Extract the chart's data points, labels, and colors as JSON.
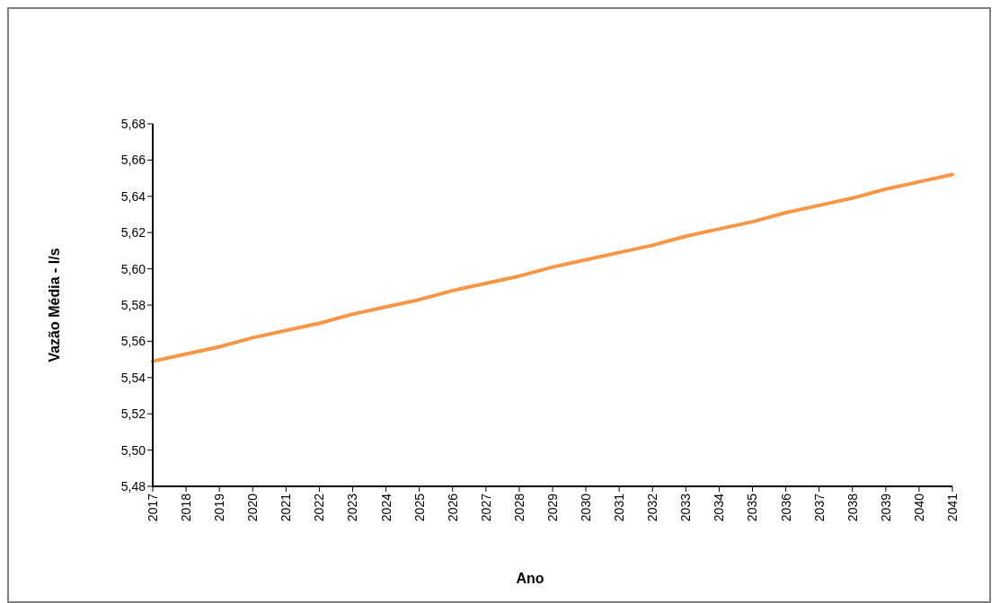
{
  "chart_data": {
    "type": "line",
    "xlabel": "Ano",
    "ylabel": "Vazão Média - l/s",
    "categories": [
      "2017",
      "2018",
      "2019",
      "2020",
      "2021",
      "2022",
      "2023",
      "2024",
      "2025",
      "2026",
      "2027",
      "2028",
      "2029",
      "2030",
      "2031",
      "2032",
      "2033",
      "2034",
      "2035",
      "2036",
      "2037",
      "2038",
      "2039",
      "2040",
      "2041"
    ],
    "series": [
      {
        "color": "#f79646",
        "values": [
          5.549,
          5.553,
          5.557,
          5.562,
          5.566,
          5.57,
          5.575,
          5.579,
          5.583,
          5.588,
          5.592,
          5.596,
          5.601,
          5.605,
          5.609,
          5.613,
          5.618,
          5.622,
          5.626,
          5.631,
          5.635,
          5.639,
          5.644,
          5.648,
          5.652
        ]
      }
    ],
    "ylim": [
      5.48,
      5.68
    ],
    "yticks": [
      {
        "value": 5.48,
        "label": "5,48"
      },
      {
        "value": 5.5,
        "label": "5,50"
      },
      {
        "value": 5.52,
        "label": "5,52"
      },
      {
        "value": 5.54,
        "label": "5,54"
      },
      {
        "value": 5.56,
        "label": "5,56"
      },
      {
        "value": 5.58,
        "label": "5,58"
      },
      {
        "value": 5.6,
        "label": "5,60"
      },
      {
        "value": 5.62,
        "label": "5,62"
      },
      {
        "value": 5.64,
        "label": "5,64"
      },
      {
        "value": 5.66,
        "label": "5,66"
      },
      {
        "value": 5.68,
        "label": "5,68"
      }
    ],
    "grid": false,
    "legend": false,
    "marker": "none",
    "line_style": "solid"
  }
}
